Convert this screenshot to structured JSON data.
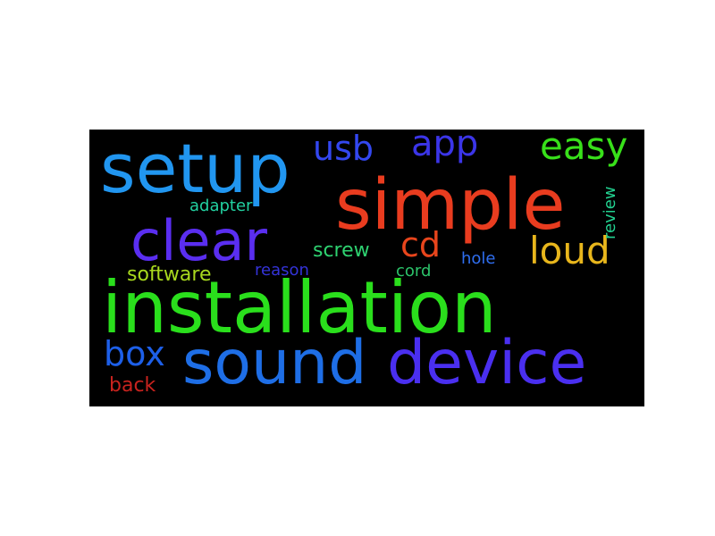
{
  "word_cloud": {
    "background": "#000000",
    "words": [
      {
        "text": "installation",
        "color": "#2adf1c"
      },
      {
        "text": "simple",
        "color": "#e93c1f"
      },
      {
        "text": "setup",
        "color": "#2196f0"
      },
      {
        "text": "device",
        "color": "#4a2ff0"
      },
      {
        "text": "sound",
        "color": "#1e6ee6"
      },
      {
        "text": "clear",
        "color": "#5a2ef0"
      },
      {
        "text": "easy",
        "color": "#38e01a"
      },
      {
        "text": "app",
        "color": "#3b35e8"
      },
      {
        "text": "usb",
        "color": "#3347f0"
      },
      {
        "text": "loud",
        "color": "#e8b61c"
      },
      {
        "text": "cd",
        "color": "#e8451c"
      },
      {
        "text": "box",
        "color": "#1d5fe8"
      },
      {
        "text": "screw",
        "color": "#2ed170"
      },
      {
        "text": "software",
        "color": "#a8d81e"
      },
      {
        "text": "adapter",
        "color": "#22d1a0"
      },
      {
        "text": "review",
        "color": "#22d190"
      },
      {
        "text": "reason",
        "color": "#3433d8"
      },
      {
        "text": "cord",
        "color": "#2cc36a"
      },
      {
        "text": "hole",
        "color": "#2f6ef0"
      },
      {
        "text": "back",
        "color": "#c8231e"
      }
    ]
  }
}
